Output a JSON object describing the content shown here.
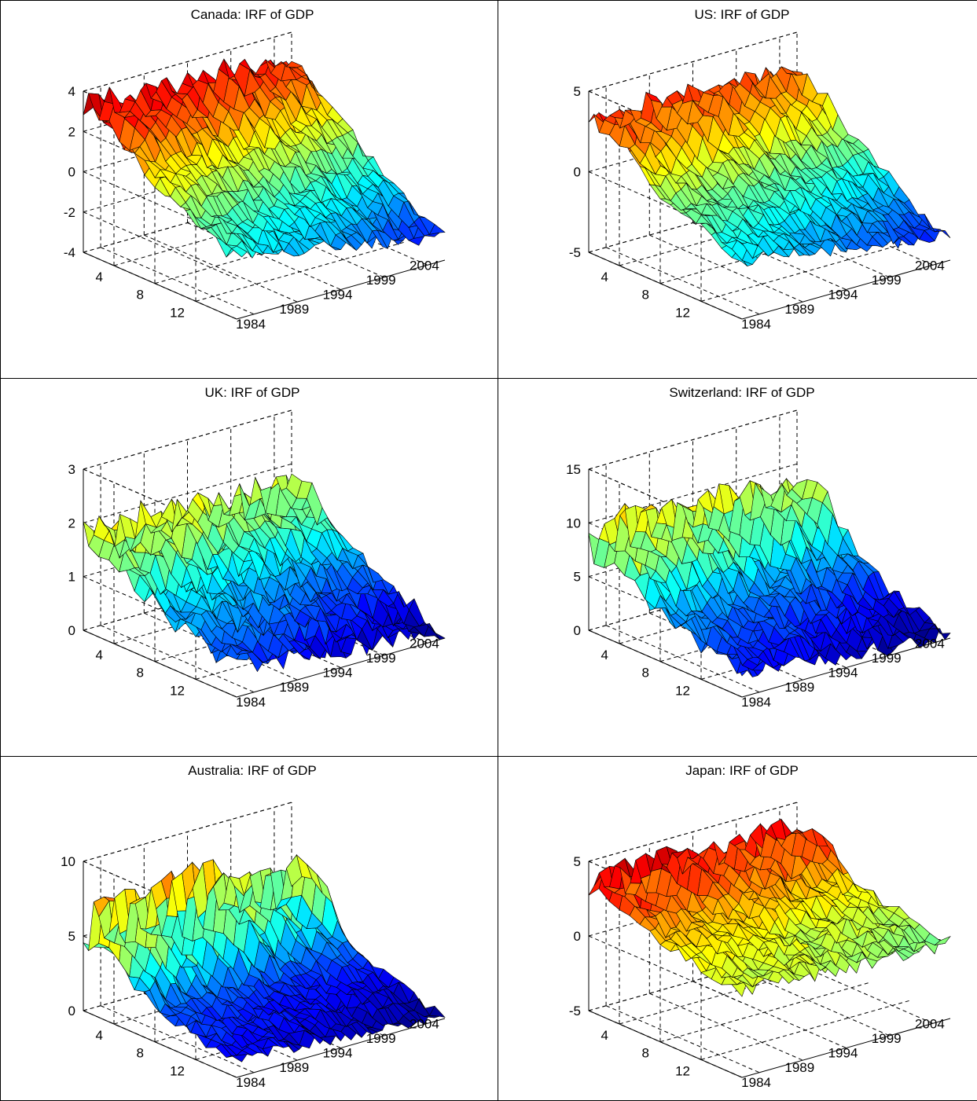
{
  "colors": {
    "jet_low": "#00008f",
    "jet_mid": "#80ff80",
    "jet_high": "#800000",
    "mesh_edge": "#000000"
  },
  "chart_data": [
    {
      "type": "surface",
      "title": "Canada: IRF of GDP",
      "horizon_ticks": [
        "4",
        "8",
        "12"
      ],
      "year_ticks": [
        "1984",
        "1989",
        "1994",
        "1999",
        "2004"
      ],
      "z_ticks": [
        "4",
        "2",
        "0",
        "-2",
        "-4"
      ],
      "zlim": [
        -4,
        4
      ],
      "horizon_range": [
        1,
        16
      ],
      "year_range": [
        1982,
        2006
      ],
      "shape": {
        "start": 2.3,
        "peak": 4.3,
        "late_decay": -2.8,
        "noise": 0.8
      }
    },
    {
      "type": "surface",
      "title": "US: IRF of GDP",
      "horizon_ticks": [
        "4",
        "8",
        "12"
      ],
      "year_ticks": [
        "1984",
        "1989",
        "1994",
        "1999",
        "2004"
      ],
      "z_ticks": [
        "5",
        "0",
        "-5"
      ],
      "zlim": [
        -5,
        5
      ],
      "horizon_range": [
        1,
        16
      ],
      "year_range": [
        1982,
        2006
      ],
      "shape": {
        "start": 2.0,
        "peak": 4.8,
        "late_decay": -3.5,
        "noise": 0.9
      }
    },
    {
      "type": "surface",
      "title": "UK: IRF of GDP",
      "horizon_ticks": [
        "4",
        "8",
        "12"
      ],
      "year_ticks": [
        "1984",
        "1989",
        "1994",
        "1999",
        "2004"
      ],
      "z_ticks": [
        "3",
        "2",
        "1",
        "0"
      ],
      "zlim": [
        0,
        3
      ],
      "horizon_range": [
        1,
        16
      ],
      "year_range": [
        1982,
        2006
      ],
      "shape": {
        "start": 1.4,
        "peak": 2.2,
        "late_decay": 0.1,
        "noise": 0.5
      }
    },
    {
      "type": "surface",
      "title": "Switzerland: IRF of GDP",
      "horizon_ticks": [
        "4",
        "8",
        "12"
      ],
      "year_ticks": [
        "1984",
        "1989",
        "1994",
        "1999",
        "2004"
      ],
      "z_ticks": [
        "15",
        "10",
        "5",
        "0"
      ],
      "zlim": [
        0,
        15
      ],
      "horizon_range": [
        1,
        16
      ],
      "year_range": [
        1982,
        2006
      ],
      "shape": {
        "start": 6.0,
        "peak": 12.5,
        "late_decay": 0.2,
        "noise": 2.0
      }
    },
    {
      "type": "surface",
      "title": "Australia: IRF of GDP",
      "horizon_ticks": [
        "4",
        "8",
        "12"
      ],
      "year_ticks": [
        "1984",
        "1989",
        "1994",
        "1999",
        "2004"
      ],
      "z_ticks": [
        "10",
        "5",
        "0"
      ],
      "zlim": [
        0,
        10
      ],
      "horizon_range": [
        1,
        16
      ],
      "year_range": [
        1982,
        2006
      ],
      "shape": {
        "start": 2.8,
        "peak": 10.0,
        "late_decay": 0.3,
        "noise": 1.0
      }
    },
    {
      "type": "surface",
      "title": "Japan: IRF of GDP",
      "horizon_ticks": [
        "4",
        "8",
        "12"
      ],
      "year_ticks": [
        "1984",
        "1989",
        "1994",
        "1999",
        "2004"
      ],
      "z_ticks": [
        "5",
        "0",
        "-5"
      ],
      "zlim": [
        -5,
        5
      ],
      "horizon_range": [
        1,
        16
      ],
      "year_range": [
        1982,
        2006
      ],
      "shape": {
        "start": 2.2,
        "peak": 5.5,
        "late_decay": 0.0,
        "noise": 1.2
      }
    }
  ]
}
